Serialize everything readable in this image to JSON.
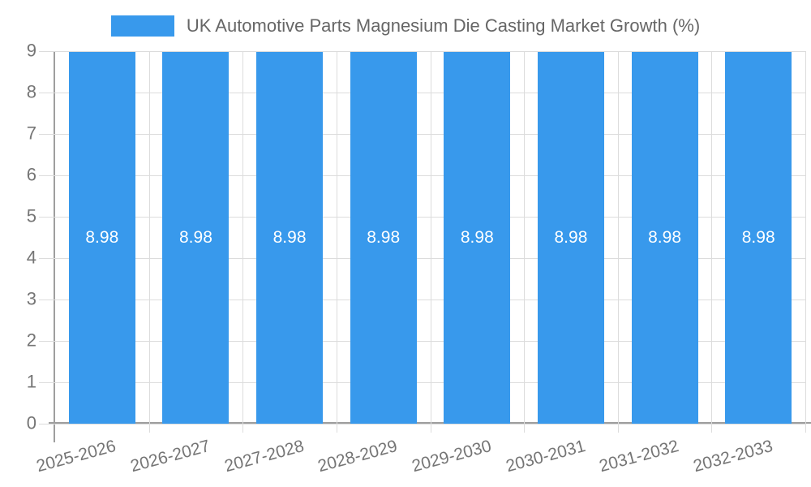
{
  "chart_data": {
    "type": "bar",
    "title": "UK Automotive Parts Magnesium Die Casting Market Growth (%)",
    "categories": [
      "2025-2026",
      "2026-2027",
      "2027-2028",
      "2028-2029",
      "2029-2030",
      "2030-2031",
      "2031-2032",
      "2032-2033"
    ],
    "values": [
      8.98,
      8.98,
      8.98,
      8.98,
      8.98,
      8.98,
      8.98,
      8.98
    ],
    "value_labels": [
      "8.98",
      "8.98",
      "8.98",
      "8.98",
      "8.98",
      "8.98",
      "8.98",
      "8.98"
    ],
    "xlabel": "",
    "ylabel": "",
    "ylim": [
      0,
      9
    ],
    "yticks": [
      0,
      1,
      2,
      3,
      4,
      5,
      6,
      7,
      8,
      9
    ],
    "grid": true,
    "legend_position": "top",
    "colors": {
      "bar": "#3899EC",
      "value_label": "#FFFFFF",
      "title": "#666666",
      "tick_label": "#757575",
      "axis_line": "#9E9E9E",
      "gridline": "#DCDCDC"
    }
  }
}
